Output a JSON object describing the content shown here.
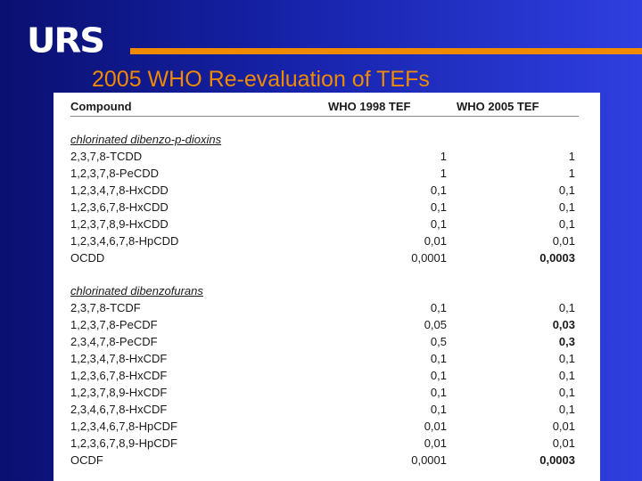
{
  "brand": {
    "logo_text": "URS",
    "accent_color": "#f08a00"
  },
  "slide": {
    "title": "2005 WHO Re-evaluation of TEFs"
  },
  "table": {
    "headers": [
      "Compound",
      "WHO 1998 TEF",
      "WHO 2005 TEF"
    ],
    "sections": [
      {
        "label": "chlorinated dibenzo-p-dioxins",
        "rows": [
          {
            "compound": "2,3,7,8-TCDD",
            "tef_1998": "1",
            "tef_2005": "1",
            "bold": false
          },
          {
            "compound": "1,2,3,7,8-PeCDD",
            "tef_1998": "1",
            "tef_2005": "1",
            "bold": false
          },
          {
            "compound": "1,2,3,4,7,8-HxCDD",
            "tef_1998": "0,1",
            "tef_2005": "0,1",
            "bold": false
          },
          {
            "compound": "1,2,3,6,7,8-HxCDD",
            "tef_1998": "0,1",
            "tef_2005": "0,1",
            "bold": false
          },
          {
            "compound": "1,2,3,7,8,9-HxCDD",
            "tef_1998": "0,1",
            "tef_2005": "0,1",
            "bold": false
          },
          {
            "compound": "1,2,3,4,6,7,8-HpCDD",
            "tef_1998": "0,01",
            "tef_2005": "0,01",
            "bold": false
          },
          {
            "compound": "OCDD",
            "tef_1998": "0,0001",
            "tef_2005": "0,0003",
            "bold": true
          }
        ]
      },
      {
        "label": "chlorinated dibenzofurans",
        "rows": [
          {
            "compound": "2,3,7,8-TCDF",
            "tef_1998": "0,1",
            "tef_2005": "0,1",
            "bold": false
          },
          {
            "compound": "1,2,3,7,8-PeCDF",
            "tef_1998": "0,05",
            "tef_2005": "0,03",
            "bold": true
          },
          {
            "compound": "2,3,4,7,8-PeCDF",
            "tef_1998": "0,5",
            "tef_2005": "0,3",
            "bold": true
          },
          {
            "compound": "1,2,3,4,7,8-HxCDF",
            "tef_1998": "0,1",
            "tef_2005": "0,1",
            "bold": false
          },
          {
            "compound": "1,2,3,6,7,8-HxCDF",
            "tef_1998": "0,1",
            "tef_2005": "0,1",
            "bold": false
          },
          {
            "compound": "1,2,3,7,8,9-HxCDF",
            "tef_1998": "0,1",
            "tef_2005": "0,1",
            "bold": false
          },
          {
            "compound": "2,3,4,6,7,8-HxCDF",
            "tef_1998": "0,1",
            "tef_2005": "0,1",
            "bold": false
          },
          {
            "compound": "1,2,3,4,6,7,8-HpCDF",
            "tef_1998": "0,01",
            "tef_2005": "0,01",
            "bold": false
          },
          {
            "compound": "1,2,3,6,7,8,9-HpCDF",
            "tef_1998": "0,01",
            "tef_2005": "0,01",
            "bold": false
          },
          {
            "compound": "OCDF",
            "tef_1998": "0,0001",
            "tef_2005": "0,0003",
            "bold": true
          }
        ]
      }
    ]
  }
}
